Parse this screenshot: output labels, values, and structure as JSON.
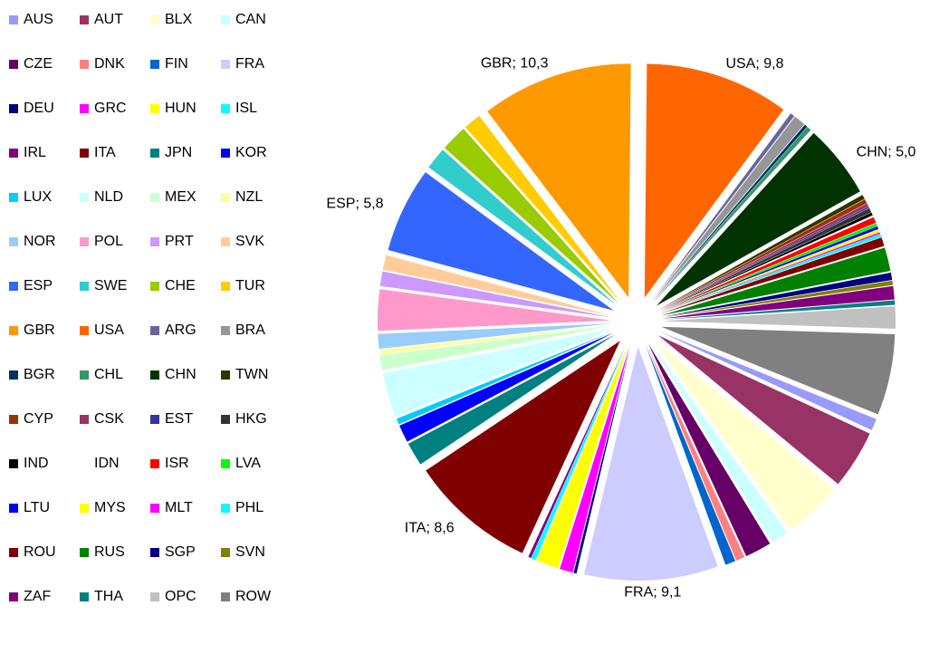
{
  "chart_data": {
    "type": "pie",
    "categories": [
      "AUS",
      "AUT",
      "BLX",
      "CAN",
      "CZE",
      "DNK",
      "FIN",
      "FRA",
      "DEU",
      "GRC",
      "HUN",
      "ISL",
      "IRL",
      "ITA",
      "JPN",
      "KOR",
      "LUX",
      "NLD",
      "MEX",
      "NZL",
      "NOR",
      "POL",
      "PRT",
      "SVK",
      "ESP",
      "SWE",
      "CHE",
      "TUR",
      "GBR",
      "USA",
      "ARG",
      "BRA",
      "BGR",
      "CHL",
      "CHN",
      "TWN",
      "CYP",
      "CSK",
      "EST",
      "HKG",
      "IND",
      "IDN",
      "ISR",
      "LVA",
      "LTU",
      "MYS",
      "MLT",
      "PHL",
      "ROU",
      "RUS",
      "SGP",
      "SVN",
      "ZAF",
      "THA",
      "OPC",
      "ROW"
    ],
    "values": [
      0.8,
      4.0,
      4.0,
      1.2,
      1.8,
      0.6,
      0.7,
      9.1,
      0.2,
      0.9,
      1.5,
      0.3,
      0.2,
      8.6,
      1.6,
      1.2,
      0.4,
      3.0,
      1.0,
      0.3,
      1.0,
      2.8,
      1.0,
      1.0,
      5.8,
      1.5,
      1.8,
      1.2,
      10.3,
      9.8,
      0.3,
      0.8,
      0.2,
      0.3,
      5.0,
      0.3,
      0.3,
      0.2,
      0.1,
      0.3,
      0.2,
      0.1,
      0.4,
      0.2,
      0.2,
      0.2,
      0.1,
      0.2,
      0.6,
      1.6,
      0.5,
      0.3,
      0.9,
      0.3,
      1.5,
      5.5
    ],
    "value_labels": [
      null,
      null,
      null,
      null,
      null,
      null,
      null,
      "FRA; 9,1",
      null,
      null,
      null,
      null,
      null,
      "ITA; 8,6",
      null,
      null,
      null,
      null,
      null,
      null,
      null,
      null,
      null,
      null,
      "ESP; 5,8",
      null,
      null,
      null,
      "GBR; 10,3",
      "USA; 9,8",
      null,
      null,
      null,
      null,
      "CHN; 5,0",
      null,
      null,
      null,
      null,
      null,
      null,
      null,
      null,
      null,
      null,
      null,
      null,
      null,
      null,
      null,
      null,
      null,
      null,
      null,
      null,
      null
    ],
    "colors": [
      "#9999ff",
      "#993366",
      "#ffffcc",
      "#ccffff",
      "#660066",
      "#ff8080",
      "#0066cc",
      "#ccccff",
      "#000080",
      "#ff00ff",
      "#ffff00",
      "#00ffff",
      "#800080",
      "#800000",
      "#008080",
      "#0000ff",
      "#00ccff",
      "#ccffff",
      "#ccffcc",
      "#ffff99",
      "#99ccff",
      "#ff99cc",
      "#cc99ff",
      "#ffcc99",
      "#3366ff",
      "#33cccc",
      "#99cc00",
      "#ffcc00",
      "#ff9900",
      "#ff6600",
      "#666699",
      "#969696",
      "#003366",
      "#339966",
      "#003300",
      "#333300",
      "#993300",
      "#993366",
      "#333399",
      "#333333",
      "#000000",
      "#ffffff",
      "#ff0000",
      "#00ff00",
      "#0000ff",
      "#ffff00",
      "#ff00ff",
      "#00ffff",
      "#800000",
      "#008000",
      "#000080",
      "#808000",
      "#800080",
      "#008080",
      "#c0c0c0",
      "#808080"
    ],
    "legend": "left"
  }
}
